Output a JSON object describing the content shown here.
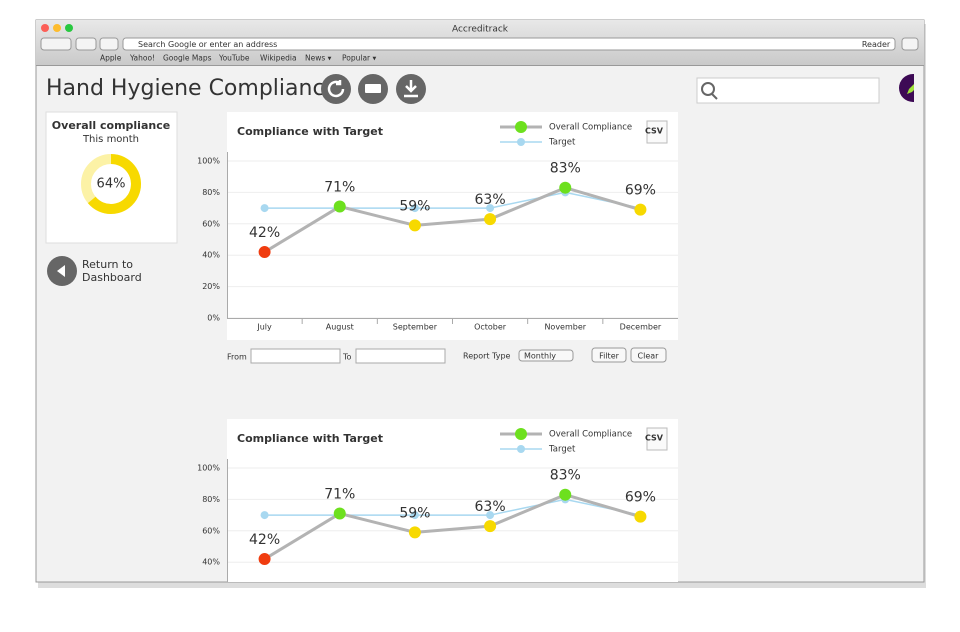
{
  "browser": {
    "title": "Accreditrack",
    "address_placeholder": "Search Google or enter an address",
    "reader": "Reader",
    "bookmarks": [
      "Apple",
      "Yahoo!",
      "Google Maps",
      "YouTube",
      "Wikipedia",
      "News ▾",
      "Popular ▾"
    ]
  },
  "page": {
    "title": "Hand Hygiene Compliance",
    "summary": {
      "title": "Overall compliance",
      "subtitle": "This month",
      "value": 64,
      "value_label": "64%",
      "color": "#f7d900"
    },
    "return_link": [
      "Return to",
      "Dashboard"
    ],
    "filter": {
      "from": "From",
      "to": "To",
      "report_type": "Report Type",
      "report_type_value": "Monthly",
      "filter_button": "Filter",
      "clear_button": "Clear"
    }
  },
  "chart_data": [
    {
      "type": "line",
      "title": "Compliance with Target",
      "export_label": "CSV",
      "categories": [
        "July",
        "August",
        "September",
        "October",
        "November",
        "December"
      ],
      "series": [
        {
          "name": "Overall Compliance",
          "color": "#b3b3b3",
          "values": [
            42,
            71,
            59,
            63,
            83,
            69
          ],
          "value_labels": [
            "42%",
            "71%",
            "59%",
            "63%",
            "83%",
            "69%"
          ],
          "point_colors": [
            "#f03c0f",
            "#6de01e",
            "#f7d900",
            "#f7d900",
            "#6de01e",
            "#f7d900"
          ]
        },
        {
          "name": "Target",
          "color": "#a8d8f0",
          "values": [
            70,
            70,
            70,
            70,
            80,
            70
          ]
        }
      ],
      "ylim": [
        0,
        100
      ],
      "yticks": [
        {
          "value": 0,
          "label": "0%"
        },
        {
          "value": 20,
          "label": "20%"
        },
        {
          "value": 40,
          "label": "40%"
        },
        {
          "value": 60,
          "label": "60%"
        },
        {
          "value": 80,
          "label": "80%"
        },
        {
          "value": 100,
          "label": "100%"
        }
      ],
      "grid": true
    },
    {
      "type": "line",
      "title": "Compliance with Target",
      "export_label": "CSV",
      "series": [
        {
          "name": "Overall Compliance",
          "color": "#b3b3b3",
          "values": [
            42,
            71,
            59,
            63,
            83,
            69
          ],
          "value_labels": [
            "42%",
            "71%",
            "59%",
            "63%",
            "83%",
            "69%"
          ],
          "point_colors": [
            "#f03c0f",
            "#6de01e",
            "#f7d900",
            "#f7d900",
            "#6de01e",
            "#f7d900"
          ]
        },
        {
          "name": "Target",
          "color": "#a8d8f0",
          "values": [
            70,
            70,
            70,
            70,
            80,
            70
          ]
        }
      ],
      "ylim": [
        0,
        100
      ],
      "yticks": [
        {
          "value": 40,
          "label": "40%"
        },
        {
          "value": 60,
          "label": "60%"
        },
        {
          "value": 80,
          "label": "80%"
        },
        {
          "value": 100,
          "label": "100%"
        }
      ],
      "grid": true
    }
  ]
}
